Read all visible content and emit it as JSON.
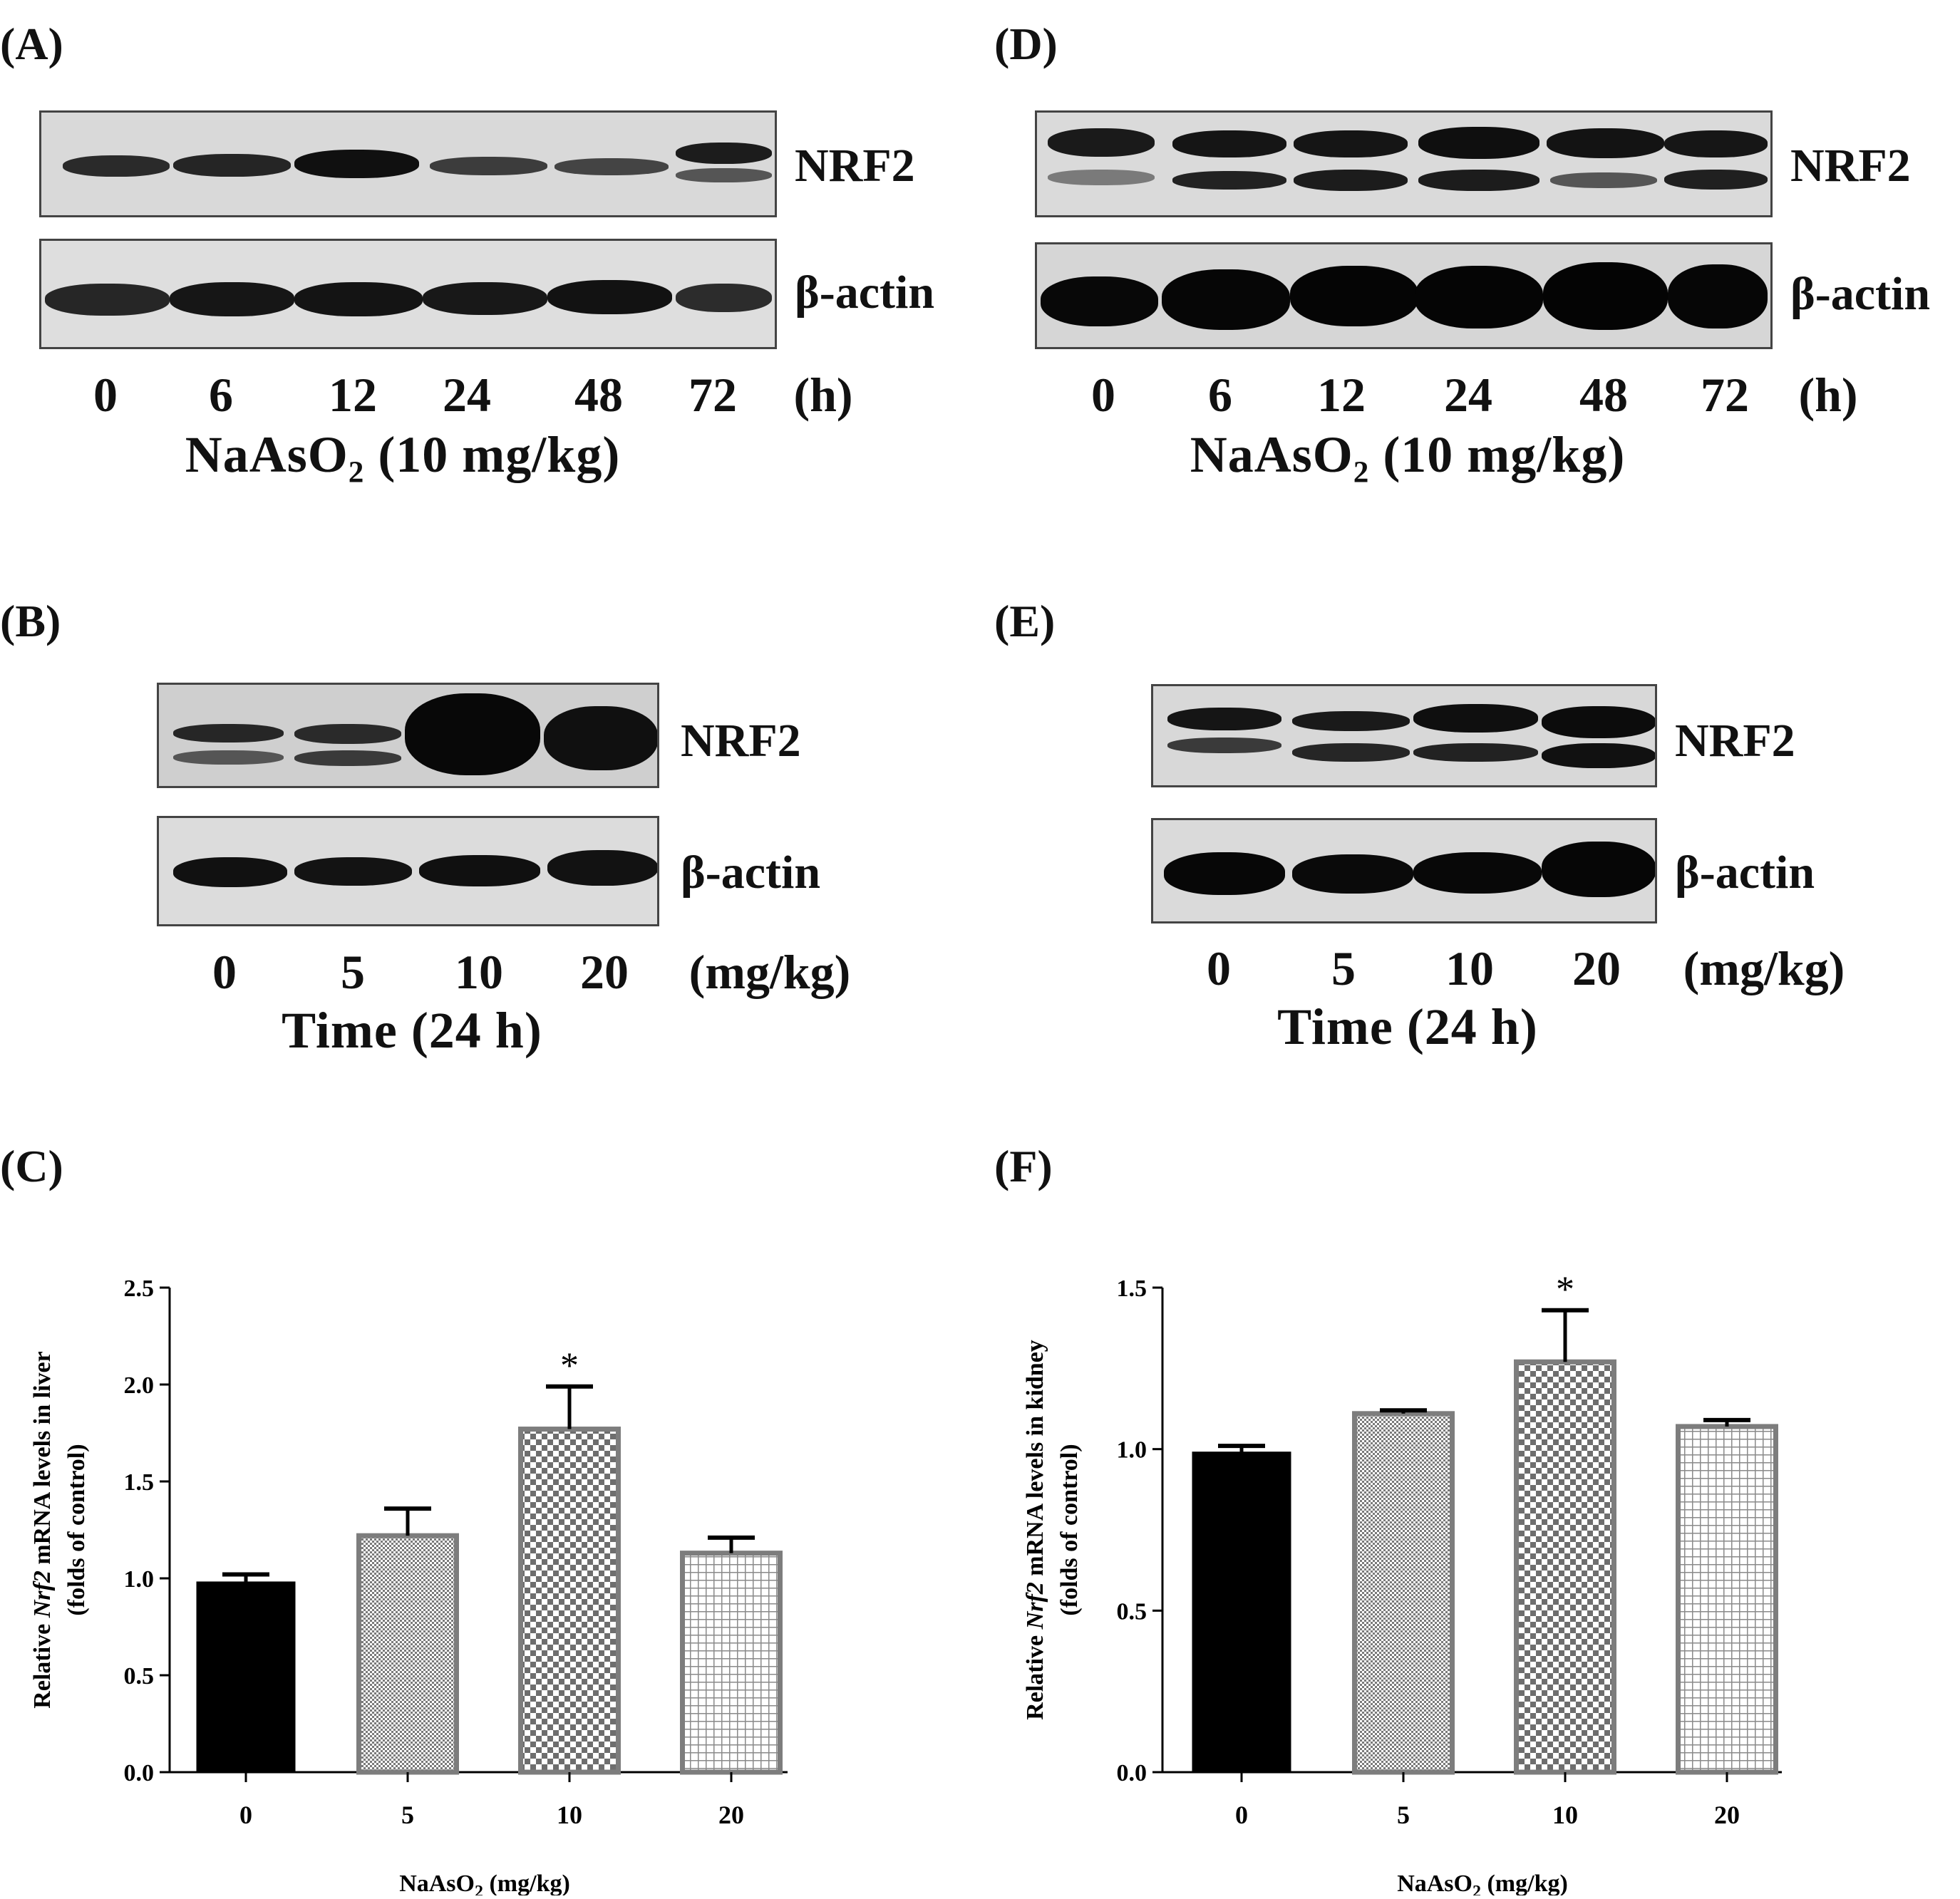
{
  "panels": {
    "A": {
      "label": "(A)",
      "top_label": "NRF2",
      "bottom_label": "β-actin",
      "lanes": [
        "0",
        "6",
        "12",
        "24",
        "48",
        "72"
      ],
      "unit": "(h)",
      "caption": "NaAsO₂ (10 mg/kg)"
    },
    "B": {
      "label": "(B)",
      "top_label": "NRF2",
      "bottom_label": "β-actin",
      "lanes": [
        "0",
        "5",
        "10",
        "20"
      ],
      "unit": "(mg/kg)",
      "caption": "Time (24 h)"
    },
    "C": {
      "label": "(C)"
    },
    "D": {
      "label": "(D)",
      "top_label": "NRF2",
      "bottom_label": "β-actin",
      "lanes": [
        "0",
        "6",
        "12",
        "24",
        "48",
        "72"
      ],
      "unit": "(h)",
      "caption": "NaAsO₂ (10 mg/kg)"
    },
    "E": {
      "label": "(E)",
      "top_label": "NRF2",
      "bottom_label": "β-actin",
      "lanes": [
        "0",
        "5",
        "10",
        "20"
      ],
      "unit": "(mg/kg)",
      "caption": "Time (24 h)"
    },
    "F": {
      "label": "(F)"
    }
  },
  "chart_data": [
    {
      "panel": "C",
      "type": "bar",
      "categories": [
        "0",
        "5",
        "10",
        "20"
      ],
      "values": [
        0.98,
        1.22,
        1.77,
        1.13
      ],
      "errors": [
        0.04,
        0.14,
        0.22,
        0.08
      ],
      "significance": [
        "",
        "",
        "*",
        ""
      ],
      "ylim": [
        0,
        2.5
      ],
      "yticks": [
        "0.0",
        "0.5",
        "1.0",
        "1.5",
        "2.0",
        "2.5"
      ],
      "ylabel_line1_prefix": "Relative ",
      "ylabel_line1_italic": "Nrf2",
      "ylabel_line1_suffix": " mRNA levels in liver",
      "ylabel_line2": "(folds of control)",
      "xlabel_main": "NaAsO",
      "xlabel_sub": "2",
      "xlabel_suffix": " (mg/kg)",
      "fills": [
        "solid",
        "fine-dots",
        "checker",
        "grid"
      ]
    },
    {
      "panel": "F",
      "type": "bar",
      "categories": [
        "0",
        "5",
        "10",
        "20"
      ],
      "values": [
        0.99,
        1.11,
        1.27,
        1.07
      ],
      "errors": [
        0.02,
        0.01,
        0.16,
        0.02
      ],
      "significance": [
        "",
        "",
        "*",
        ""
      ],
      "ylim": [
        0,
        1.5
      ],
      "yticks": [
        "0.0",
        "0.5",
        "1.0",
        "1.5"
      ],
      "ylabel_line1_prefix": "Relative ",
      "ylabel_line1_italic": "Nrf2",
      "ylabel_line1_suffix": " mRNA levels in kidney",
      "ylabel_line2": "(folds of control)",
      "xlabel_main": "NaAsO",
      "xlabel_sub": "2",
      "xlabel_suffix": " (mg/kg)",
      "fills": [
        "solid",
        "fine-dots",
        "checker",
        "grid"
      ]
    }
  ]
}
